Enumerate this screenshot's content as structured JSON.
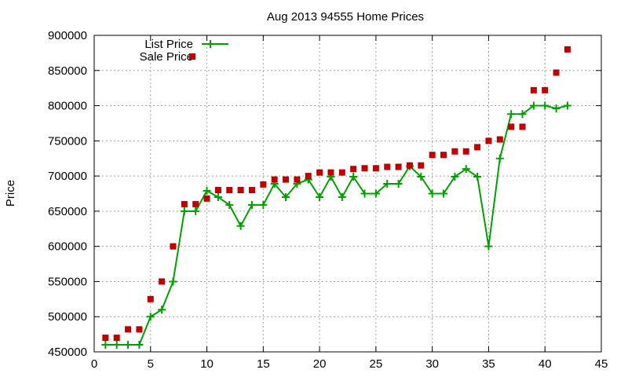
{
  "chart_data": {
    "type": "line",
    "title": "Aug 2013 94555 Home Prices",
    "xlabel": "",
    "ylabel": "Price",
    "xlim": [
      0,
      45
    ],
    "ylim": [
      450000,
      900000
    ],
    "xticks": [
      0,
      5,
      10,
      15,
      20,
      25,
      30,
      35,
      40,
      45
    ],
    "yticks": [
      450000,
      500000,
      550000,
      600000,
      650000,
      700000,
      750000,
      800000,
      850000,
      900000
    ],
    "grid": true,
    "legend_position": "top-left",
    "x": [
      1,
      2,
      3,
      4,
      5,
      6,
      7,
      8,
      9,
      10,
      11,
      12,
      13,
      14,
      15,
      16,
      17,
      18,
      19,
      20,
      21,
      22,
      23,
      24,
      25,
      26,
      27,
      28,
      29,
      30,
      31,
      32,
      33,
      34,
      35,
      36,
      37,
      38,
      39,
      40,
      41,
      42
    ],
    "series": [
      {
        "name": "List Price",
        "style": "linespoints",
        "color": "#00a000",
        "values": [
          460000,
          460000,
          460000,
          460000,
          500000,
          510000,
          550000,
          650000,
          650000,
          679000,
          670000,
          659000,
          629000,
          659000,
          659000,
          689000,
          670000,
          689000,
          695000,
          670000,
          699000,
          670000,
          699000,
          675000,
          675000,
          689000,
          689000,
          714000,
          699000,
          675000,
          675000,
          699000,
          710000,
          699000,
          600000,
          725000,
          788000,
          788000,
          800000,
          800000,
          796000,
          800000
        ]
      },
      {
        "name": "Sale Price",
        "style": "points",
        "color": "#c00000",
        "values": [
          470000,
          470000,
          482000,
          482000,
          525000,
          550000,
          600000,
          660000,
          660000,
          668000,
          680000,
          680000,
          680000,
          680000,
          688000,
          695000,
          695000,
          695000,
          700000,
          705000,
          705000,
          705000,
          710000,
          711000,
          711000,
          713000,
          713000,
          715000,
          715000,
          730000,
          730000,
          735000,
          735000,
          741000,
          750000,
          752000,
          770000,
          770000,
          822000,
          822000,
          847000,
          880000
        ]
      }
    ]
  }
}
